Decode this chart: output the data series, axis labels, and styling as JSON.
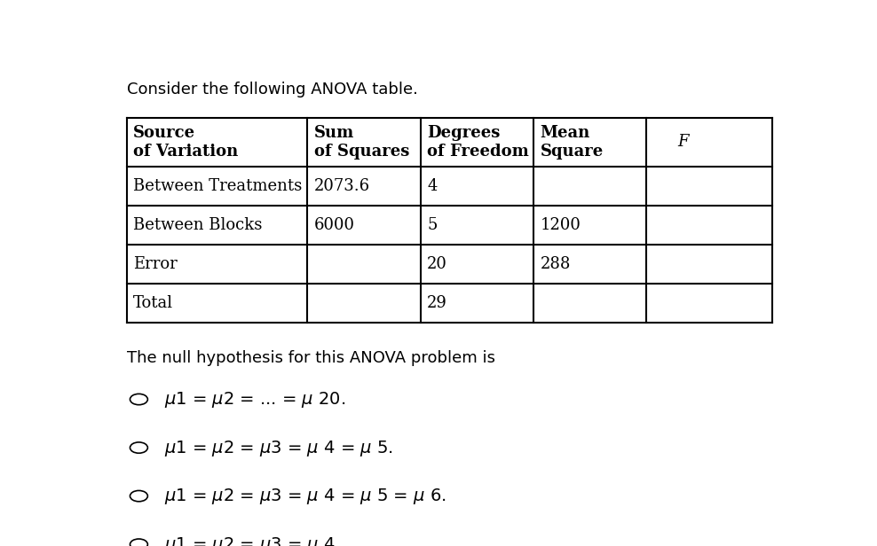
{
  "title": "Consider the following ANOVA table.",
  "header_row": [
    "Source\nof Variation",
    "Sum\nof Squares",
    "Degrees\nof Freedom",
    "Mean\nSquare",
    "F"
  ],
  "header_italic": [
    false,
    false,
    false,
    false,
    true
  ],
  "table_rows": [
    [
      "Between Treatments",
      "2073.6",
      "4",
      "",
      ""
    ],
    [
      "Between Blocks",
      "6000",
      "5",
      "1200",
      ""
    ],
    [
      "Error",
      "",
      "20",
      "288",
      ""
    ],
    [
      "Total",
      "",
      "29",
      "",
      ""
    ]
  ],
  "question_text": "The null hypothesis for this ANOVA problem is",
  "bg_color": "#ffffff",
  "text_color": "#000000",
  "table_font_size": 13,
  "title_font_size": 13,
  "options_font_size": 14,
  "question_font_size": 13
}
